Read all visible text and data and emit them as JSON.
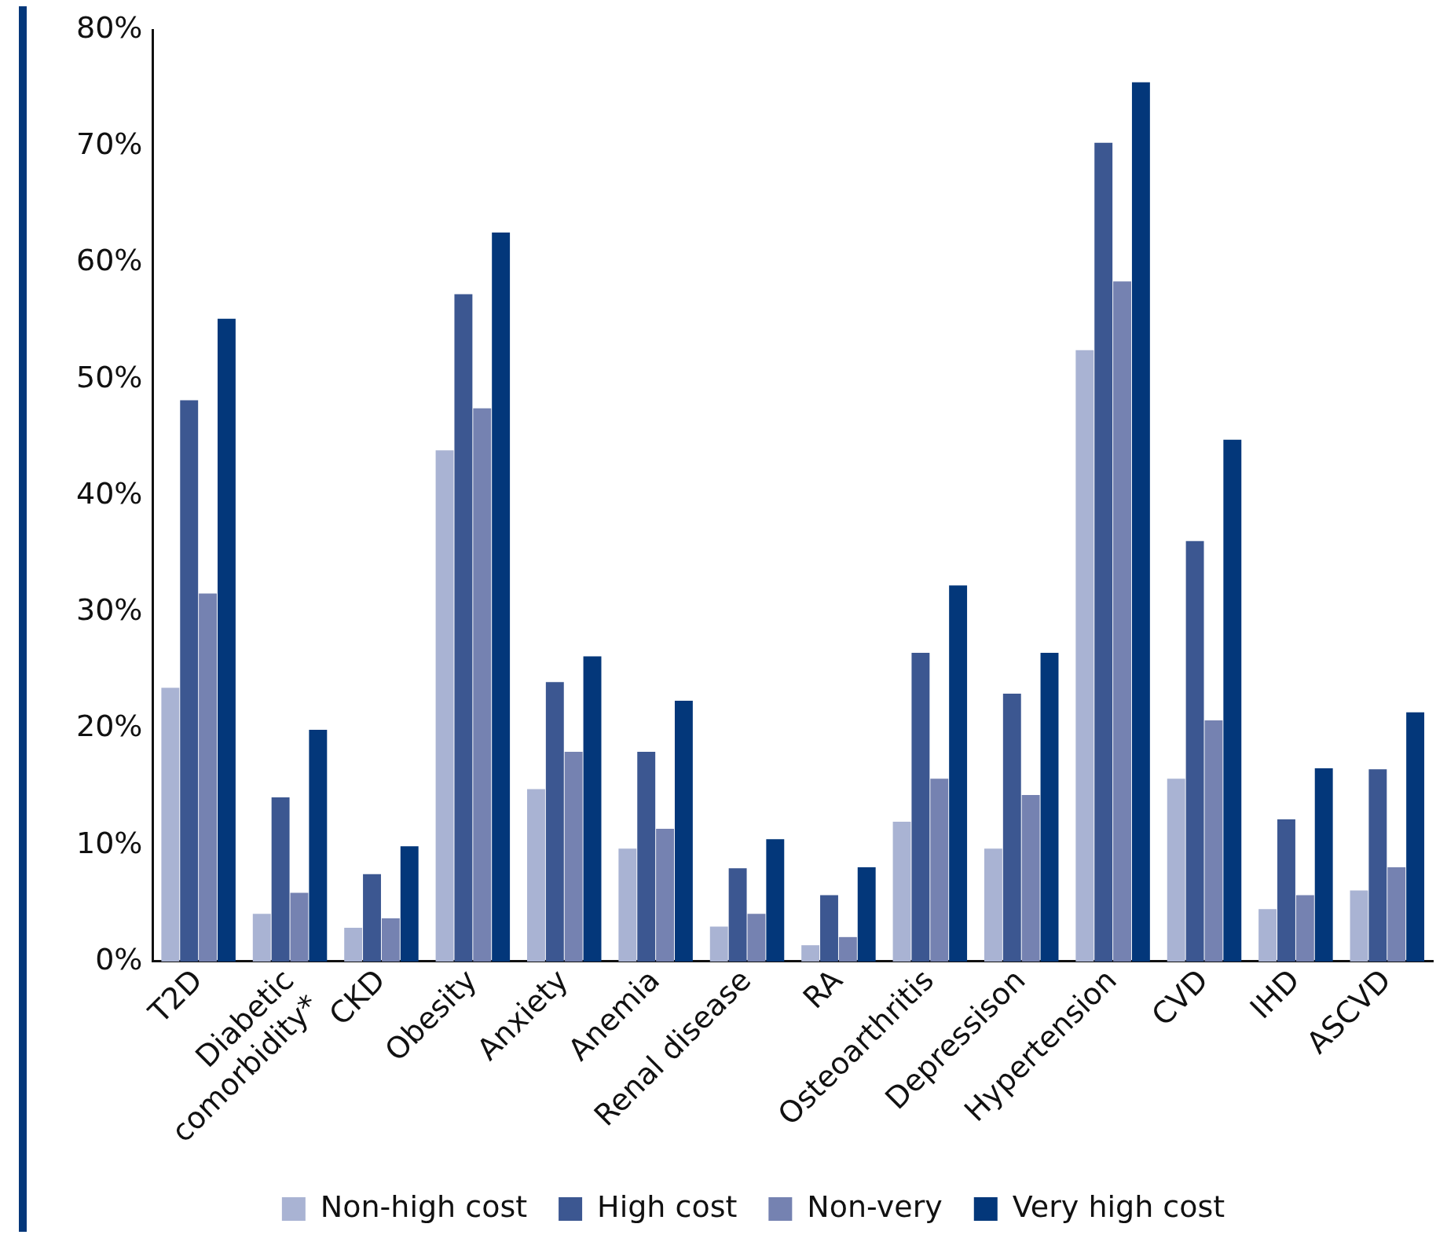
{
  "chart_data": {
    "type": "bar",
    "categories": [
      "T2D",
      "Diabetic comorbidity*",
      "CKD",
      "Obesity",
      "Anxiety",
      "Anemia",
      "Renal disease",
      "RA",
      "Osteoarthritis",
      "Depressison",
      "Hypertension",
      "CVD",
      "IHD",
      "ASCVD"
    ],
    "series": [
      {
        "name": "Non-high cost",
        "color": "#a9b3d3",
        "values": [
          23.5,
          4.1,
          2.9,
          43.9,
          14.8,
          9.7,
          3.0,
          1.4,
          12.0,
          9.7,
          52.5,
          15.7,
          4.5,
          6.1
        ]
      },
      {
        "name": "High cost",
        "color": "#3c5791",
        "values": [
          48.2,
          14.1,
          7.5,
          57.3,
          24.0,
          18.0,
          8.0,
          5.7,
          26.5,
          23.0,
          70.3,
          36.1,
          12.2,
          16.5
        ]
      },
      {
        "name": "Non-very",
        "color": "#7582b1",
        "values": [
          31.6,
          5.9,
          3.7,
          47.5,
          18.0,
          11.4,
          4.1,
          2.1,
          15.7,
          14.3,
          58.4,
          20.7,
          5.7,
          8.1
        ]
      },
      {
        "name": "Very high cost",
        "color": "#03377a",
        "values": [
          55.2,
          19.9,
          9.9,
          62.6,
          26.2,
          22.4,
          10.5,
          8.1,
          32.3,
          26.5,
          75.5,
          44.8,
          16.6,
          21.4
        ]
      }
    ],
    "ylim": [
      0,
      80
    ],
    "yticks": [
      {
        "value": 0,
        "label": "0%"
      },
      {
        "value": 10,
        "label": "10%"
      },
      {
        "value": 20,
        "label": "20%"
      },
      {
        "value": 30,
        "label": "30%"
      },
      {
        "value": 40,
        "label": "40%"
      },
      {
        "value": 50,
        "label": "50%"
      },
      {
        "value": 60,
        "label": "60%"
      },
      {
        "value": 70,
        "label": "70%"
      },
      {
        "value": 80,
        "label": "80%"
      }
    ],
    "grid": false,
    "legend": "bottom"
  }
}
